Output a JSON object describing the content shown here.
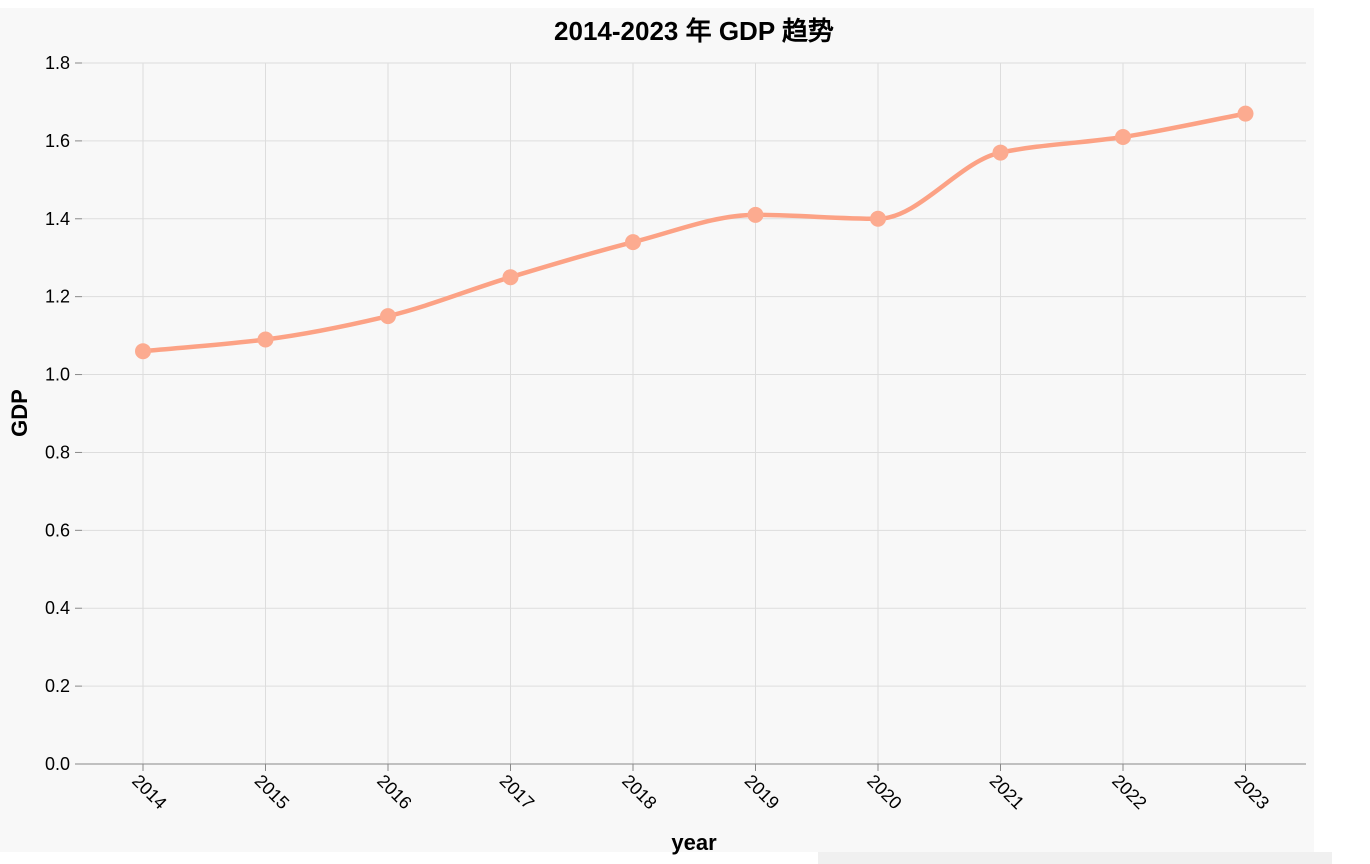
{
  "chart_data": {
    "type": "line",
    "title": "2014-2023 年 GDP 趋势",
    "xlabel": "year",
    "ylabel": "GDP",
    "categories": [
      "2014",
      "2015",
      "2016",
      "2017",
      "2018",
      "2019",
      "2020",
      "2021",
      "2022",
      "2023"
    ],
    "series": [
      {
        "values": [
          1.06,
          1.09,
          1.15,
          1.25,
          1.34,
          1.41,
          1.4,
          1.57,
          1.61,
          1.67
        ]
      }
    ],
    "ylim": [
      0,
      1.8
    ],
    "yticks": [
      "0.0",
      "0.2",
      "0.4",
      "0.6",
      "0.8",
      "1.0",
      "1.2",
      "1.4",
      "1.6",
      "1.8"
    ],
    "grid": true,
    "interpolation": "smooth",
    "colors": {
      "line": "#fca285",
      "point": "#fcab90",
      "background": "#f8f8f8",
      "grid": "#dddddd",
      "axis": "#888888"
    }
  }
}
